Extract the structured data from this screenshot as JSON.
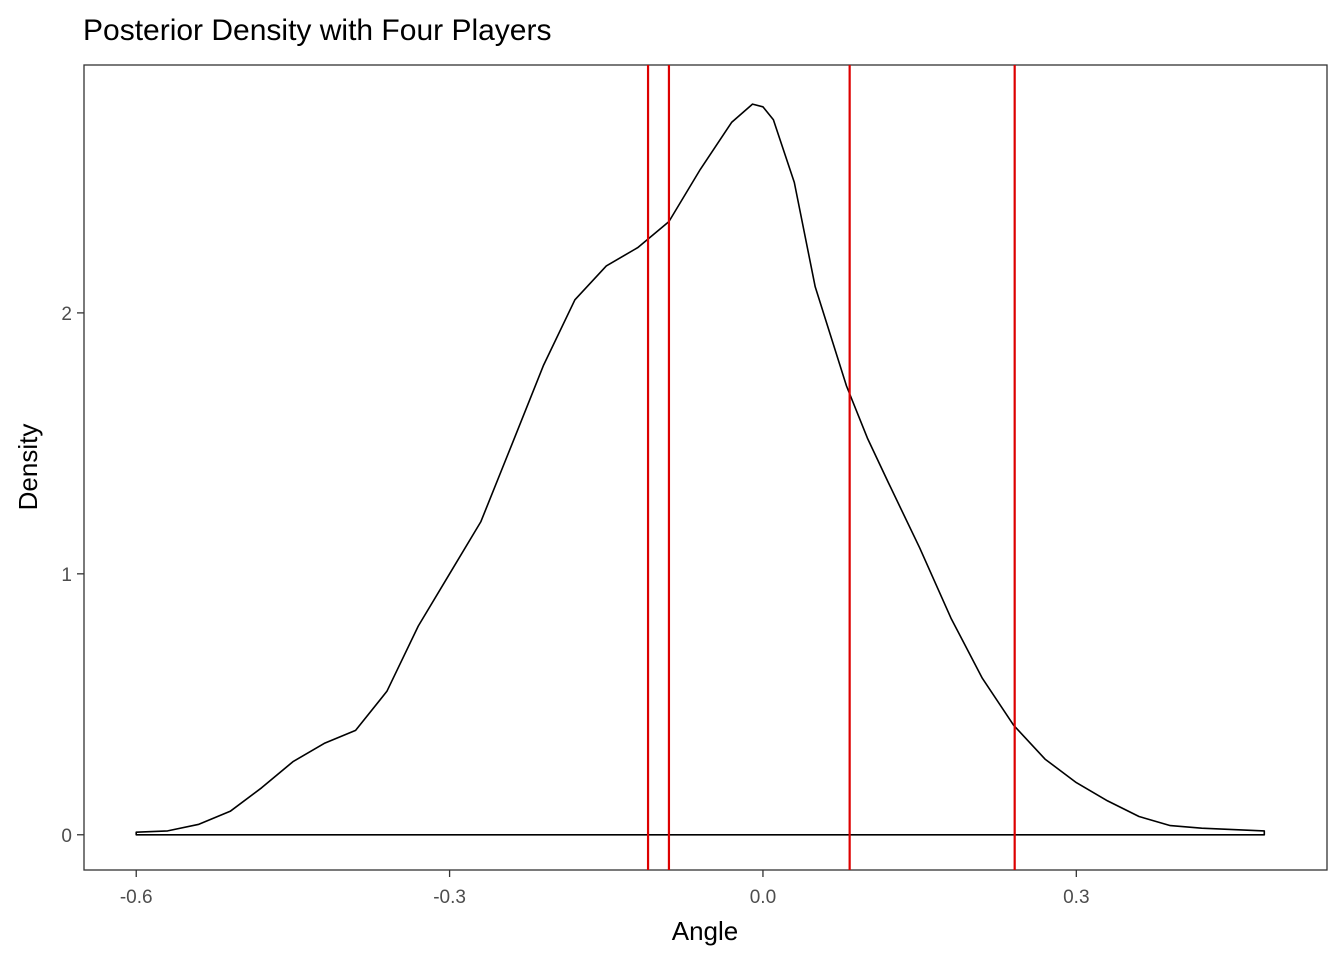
{
  "chart_data": {
    "type": "line",
    "title": "Posterior Density with Four Players",
    "xlabel": "Angle",
    "ylabel": "Density",
    "xlim": [
      -0.65,
      0.54
    ],
    "ylim": [
      -0.135,
      2.95
    ],
    "x_ticks": [
      -0.6,
      -0.3,
      0.0,
      0.3
    ],
    "x_tick_labels": [
      "-0.6",
      "-0.3",
      "0.0",
      "0.3"
    ],
    "y_ticks": [
      0,
      1,
      2
    ],
    "y_tick_labels": [
      "0",
      "1",
      "2"
    ],
    "grid": false,
    "legend": "none",
    "colors": {
      "density": "#000000",
      "vlines": "#dd0000",
      "frame": "#333333"
    },
    "density": {
      "x": [
        -0.6,
        -0.57,
        -0.54,
        -0.51,
        -0.48,
        -0.45,
        -0.42,
        -0.39,
        -0.36,
        -0.33,
        -0.3,
        -0.27,
        -0.24,
        -0.21,
        -0.18,
        -0.15,
        -0.12,
        -0.09,
        -0.06,
        -0.03,
        -0.01,
        0.0,
        0.01,
        0.03,
        0.05,
        0.08,
        0.1,
        0.12,
        0.15,
        0.18,
        0.21,
        0.24,
        0.27,
        0.3,
        0.33,
        0.36,
        0.39,
        0.42,
        0.45,
        0.48
      ],
      "y": [
        0.01,
        0.015,
        0.04,
        0.09,
        0.18,
        0.28,
        0.35,
        0.4,
        0.55,
        0.8,
        1.0,
        1.2,
        1.5,
        1.8,
        2.05,
        2.18,
        2.25,
        2.35,
        2.55,
        2.73,
        2.8,
        2.79,
        2.74,
        2.5,
        2.1,
        1.72,
        1.52,
        1.35,
        1.1,
        0.83,
        0.6,
        0.42,
        0.29,
        0.2,
        0.13,
        0.07,
        0.035,
        0.025,
        0.02,
        0.015
      ]
    },
    "vlines": [
      -0.11,
      -0.09,
      0.083,
      0.241
    ]
  }
}
